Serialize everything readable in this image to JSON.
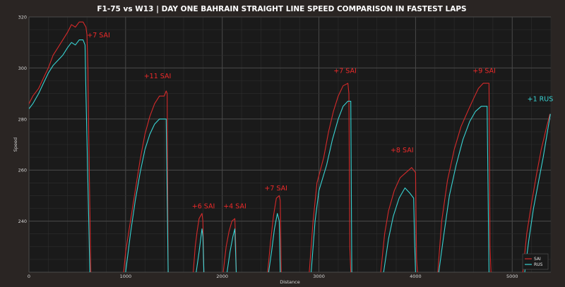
{
  "chart_data": {
    "type": "line",
    "title": "F1-75 vs W13 | DAY ONE BAHRAIN STRAIGHT LINE SPEED COMPARISON IN FASTEST LAPS",
    "xlabel": "Distance",
    "ylabel": "Speed",
    "xlim": [
      0,
      5400
    ],
    "ylim": [
      220,
      320
    ],
    "xticks": [
      0,
      1000,
      2000,
      3000,
      4000,
      5000
    ],
    "yticks": [
      240,
      260,
      280,
      300,
      320
    ],
    "grid": true,
    "legend_position": "bottom-right",
    "colors": {
      "background": "#2a2523",
      "plot_background": "#1a1a1a",
      "grid_major": "#4a4a4a",
      "grid_minor": "#2e2e2e",
      "SAI": "#d42a2a",
      "RUS": "#39d3d3",
      "annotation": "#ee2a2a",
      "annotation_rus": "#39d3d3"
    },
    "series": [
      {
        "name": "SAI",
        "segments": [
          [
            [
              0,
              286
            ],
            [
              40,
              289
            ],
            [
              100,
              292
            ],
            [
              150,
              296
            ],
            [
              200,
              300
            ],
            [
              250,
              305
            ],
            [
              300,
              308
            ],
            [
              350,
              311
            ],
            [
              400,
              314
            ],
            [
              440,
              317
            ],
            [
              480,
              316
            ],
            [
              520,
              318
            ],
            [
              560,
              318
            ],
            [
              590,
              316
            ],
            [
              600,
              313
            ],
            [
              610,
              300
            ],
            [
              620,
              270
            ],
            [
              630,
              245
            ],
            [
              640,
              220
            ]
          ],
          [
            [
              980,
              220
            ],
            [
              1000,
              228
            ],
            [
              1050,
              240
            ],
            [
              1100,
              252
            ],
            [
              1150,
              264
            ],
            [
              1200,
              274
            ],
            [
              1250,
              281
            ],
            [
              1300,
              286
            ],
            [
              1350,
              289
            ],
            [
              1400,
              289
            ],
            [
              1420,
              291
            ],
            [
              1430,
              290
            ],
            [
              1440,
              220
            ]
          ],
          [
            [
              1700,
              220
            ],
            [
              1720,
              230
            ],
            [
              1740,
              236
            ],
            [
              1760,
              241
            ],
            [
              1790,
              243
            ],
            [
              1800,
              240
            ],
            [
              1810,
              220
            ]
          ],
          [
            [
              2010,
              220
            ],
            [
              2040,
              230
            ],
            [
              2070,
              236
            ],
            [
              2100,
              240
            ],
            [
              2130,
              241
            ],
            [
              2140,
              230
            ],
            [
              2145,
              220
            ]
          ],
          [
            [
              2470,
              220
            ],
            [
              2500,
              232
            ],
            [
              2530,
              242
            ],
            [
              2560,
              249
            ],
            [
              2590,
              250
            ],
            [
              2600,
              248
            ],
            [
              2610,
              220
            ]
          ],
          [
            [
              2900,
              220
            ],
            [
              2940,
              240
            ],
            [
              2980,
              255
            ],
            [
              3050,
              265
            ],
            [
              3100,
              275
            ],
            [
              3150,
              283
            ],
            [
              3200,
              289
            ],
            [
              3250,
              293
            ],
            [
              3300,
              294
            ],
            [
              3310,
              290
            ],
            [
              3320,
              230
            ],
            [
              3330,
              220
            ]
          ],
          [
            [
              3640,
              220
            ],
            [
              3680,
              235
            ],
            [
              3720,
              244
            ],
            [
              3780,
              252
            ],
            [
              3840,
              257
            ],
            [
              3900,
              259
            ],
            [
              3960,
              261
            ],
            [
              4000,
              259
            ],
            [
              4010,
              225
            ],
            [
              4020,
              220
            ]
          ],
          [
            [
              4230,
              220
            ],
            [
              4270,
              240
            ],
            [
              4330,
              256
            ],
            [
              4400,
              268
            ],
            [
              4470,
              277
            ],
            [
              4540,
              283
            ],
            [
              4600,
              288
            ],
            [
              4650,
              292
            ],
            [
              4700,
              294
            ],
            [
              4760,
              294
            ],
            [
              4770,
              230
            ],
            [
              4780,
              220
            ]
          ],
          [
            [
              5110,
              220
            ],
            [
              5150,
              235
            ],
            [
              5200,
              247
            ],
            [
              5250,
              258
            ],
            [
              5300,
              268
            ],
            [
              5350,
              276
            ],
            [
              5390,
              282
            ]
          ]
        ]
      },
      {
        "name": "RUS",
        "segments": [
          [
            [
              0,
              284
            ],
            [
              40,
              286
            ],
            [
              100,
              290
            ],
            [
              150,
              294
            ],
            [
              200,
              298
            ],
            [
              250,
              301
            ],
            [
              300,
              303
            ],
            [
              350,
              305
            ],
            [
              400,
              308
            ],
            [
              440,
              310
            ],
            [
              480,
              309
            ],
            [
              520,
              311
            ],
            [
              560,
              311
            ],
            [
              580,
              309
            ],
            [
              590,
              290
            ],
            [
              610,
              255
            ],
            [
              630,
              220
            ]
          ],
          [
            [
              1000,
              220
            ],
            [
              1050,
              235
            ],
            [
              1100,
              248
            ],
            [
              1150,
              259
            ],
            [
              1200,
              268
            ],
            [
              1250,
              274
            ],
            [
              1300,
              278
            ],
            [
              1350,
              280
            ],
            [
              1420,
              280
            ],
            [
              1430,
              250
            ],
            [
              1440,
              220
            ]
          ],
          [
            [
              1730,
              220
            ],
            [
              1760,
              228
            ],
            [
              1780,
              234
            ],
            [
              1790,
              237
            ],
            [
              1800,
              234
            ],
            [
              1810,
              220
            ]
          ],
          [
            [
              2050,
              220
            ],
            [
              2080,
              228
            ],
            [
              2110,
              234
            ],
            [
              2130,
              237
            ],
            [
              2140,
              225
            ],
            [
              2145,
              220
            ]
          ],
          [
            [
              2480,
              220
            ],
            [
              2510,
              228
            ],
            [
              2540,
              237
            ],
            [
              2570,
              243
            ],
            [
              2590,
              240
            ],
            [
              2600,
              220
            ]
          ],
          [
            [
              2920,
              220
            ],
            [
              2960,
              240
            ],
            [
              3000,
              252
            ],
            [
              3080,
              262
            ],
            [
              3140,
              272
            ],
            [
              3200,
              280
            ],
            [
              3250,
              285
            ],
            [
              3300,
              287
            ],
            [
              3330,
              287
            ],
            [
              3340,
              220
            ]
          ],
          [
            [
              3670,
              220
            ],
            [
              3720,
              233
            ],
            [
              3770,
              242
            ],
            [
              3830,
              249
            ],
            [
              3890,
              253
            ],
            [
              3940,
              251
            ],
            [
              3980,
              249
            ],
            [
              3990,
              232
            ],
            [
              4000,
              220
            ]
          ],
          [
            [
              4240,
              220
            ],
            [
              4290,
              234
            ],
            [
              4350,
              250
            ],
            [
              4420,
              262
            ],
            [
              4490,
              272
            ],
            [
              4560,
              279
            ],
            [
              4620,
              283
            ],
            [
              4680,
              285
            ],
            [
              4740,
              285
            ],
            [
              4760,
              220
            ]
          ],
          [
            [
              5130,
              220
            ],
            [
              5170,
              232
            ],
            [
              5220,
              245
            ],
            [
              5270,
              255
            ],
            [
              5320,
              265
            ],
            [
              5360,
              274
            ],
            [
              5395,
              282
            ]
          ]
        ]
      }
    ],
    "annotations": [
      {
        "text": "+7 SAI",
        "x": 720,
        "y": 312,
        "color": "SAI"
      },
      {
        "text": "+11 SAI",
        "x": 1330,
        "y": 296,
        "color": "SAI"
      },
      {
        "text": "+6 SAI",
        "x": 1805,
        "y": 245,
        "color": "SAI"
      },
      {
        "text": "+4 SAI",
        "x": 2130,
        "y": 245,
        "color": "SAI"
      },
      {
        "text": "+7 SAI",
        "x": 2555,
        "y": 252,
        "color": "SAI"
      },
      {
        "text": "+7 SAI",
        "x": 3270,
        "y": 298,
        "color": "SAI"
      },
      {
        "text": "+8 SAI",
        "x": 3860,
        "y": 267,
        "color": "SAI"
      },
      {
        "text": "+9 SAI",
        "x": 4710,
        "y": 298,
        "color": "SAI"
      },
      {
        "text": "+1 RUS",
        "x": 5290,
        "y": 287,
        "color": "RUS"
      }
    ]
  }
}
